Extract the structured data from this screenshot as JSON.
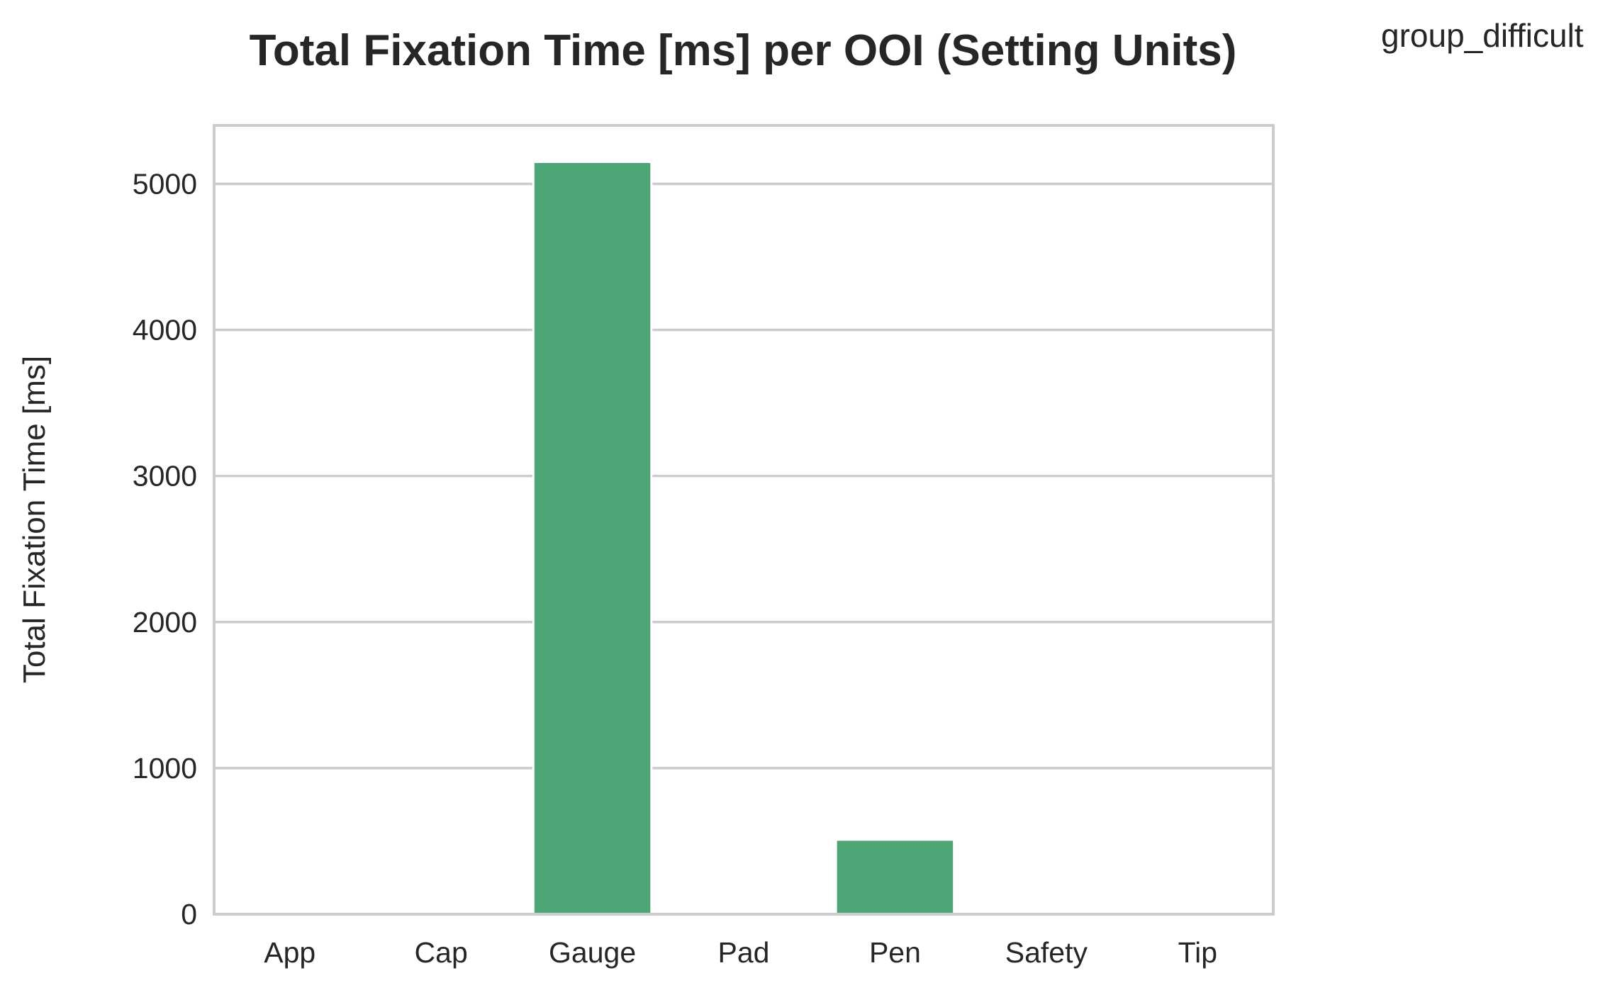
{
  "chart_data": {
    "type": "bar",
    "title": "Total Fixation Time [ms] per OOI (Setting Units)",
    "legend_title": "group_difficult",
    "legend_placement": "top-right outside",
    "xlabel": "",
    "ylabel": "Total Fixation Time [ms]",
    "categories": [
      "App",
      "Cap",
      "Gauge",
      "Pad",
      "Pen",
      "Safety",
      "Tip"
    ],
    "values": [
      0,
      0,
      5150,
      0,
      510,
      0,
      0
    ],
    "ylim": [
      0,
      5400
    ],
    "yticks": [
      0,
      1000,
      2000,
      3000,
      4000,
      5000
    ],
    "grid": true,
    "bar_color": "#4ca574"
  }
}
